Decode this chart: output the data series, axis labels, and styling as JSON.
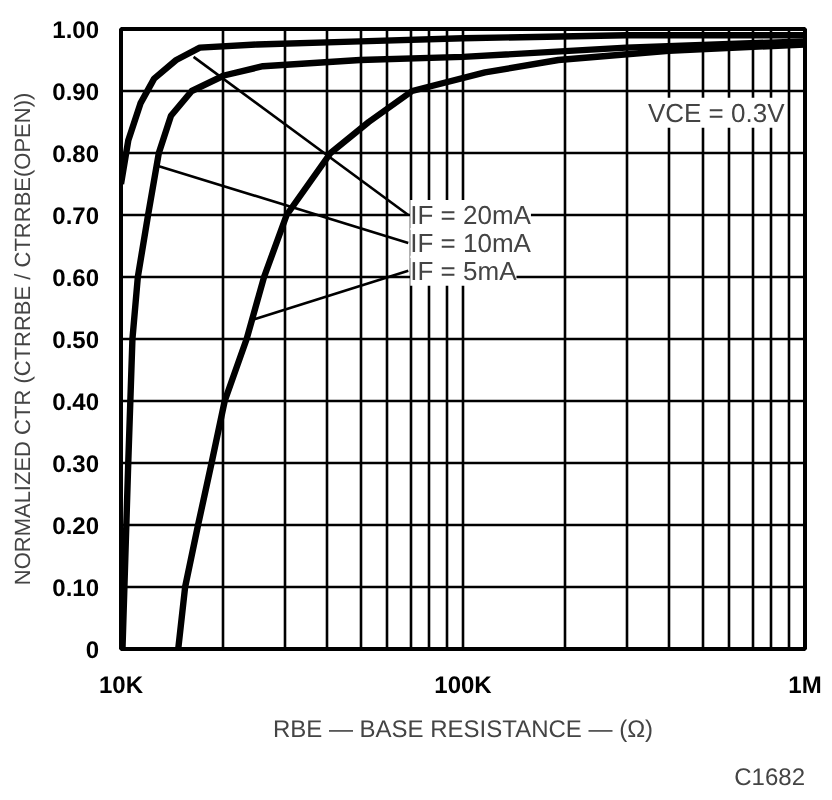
{
  "chart_data": {
    "type": "line",
    "xlabel": "RBE — BASE RESISTANCE — (Ω)",
    "ylabel": "NORMALIZED CTR (CTRRBE / CTRRBE(OPEN))",
    "log": "x",
    "grid": true,
    "marker": "none",
    "line_style": "solid",
    "xlim": [
      10000,
      1000000
    ],
    "ylim": [
      0,
      1
    ],
    "xticks": [
      {
        "value": 10000,
        "label": "10K"
      },
      {
        "value": 20000,
        "label": null
      },
      {
        "value": 30000,
        "label": null
      },
      {
        "value": 40000,
        "label": null
      },
      {
        "value": 50000,
        "label": null
      },
      {
        "value": 60000,
        "label": null
      },
      {
        "value": 70000,
        "label": null
      },
      {
        "value": 80000,
        "label": null
      },
      {
        "value": 90000,
        "label": null
      },
      {
        "value": 100000,
        "label": "100K"
      },
      {
        "value": 200000,
        "label": null
      },
      {
        "value": 300000,
        "label": null
      },
      {
        "value": 400000,
        "label": null
      },
      {
        "value": 500000,
        "label": null
      },
      {
        "value": 600000,
        "label": null
      },
      {
        "value": 700000,
        "label": null
      },
      {
        "value": 800000,
        "label": null
      },
      {
        "value": 900000,
        "label": null
      },
      {
        "value": 1000000,
        "label": "1M"
      }
    ],
    "yticks": [
      0,
      {
        "value": 0.1,
        "label": "0.10"
      },
      {
        "value": 0.2,
        "label": "0.20"
      },
      {
        "value": 0.3,
        "label": "0.30"
      },
      {
        "value": 0.4,
        "label": "0.40"
      },
      {
        "value": 0.5,
        "label": "0.50"
      },
      {
        "value": 0.6,
        "label": "0.60"
      },
      {
        "value": 0.7,
        "label": "0.70"
      },
      {
        "value": 0.8,
        "label": "0.80"
      },
      {
        "value": 0.9,
        "label": "0.90"
      },
      {
        "value": 1,
        "label": "1.00"
      }
    ],
    "series": [
      {
        "color": "#000000",
        "x": [
          10000,
          10500,
          11400,
          12500,
          14500,
          17000,
          25000,
          50000,
          100000,
          300000,
          1000000
        ],
        "values": [
          0.75,
          0.82,
          0.88,
          0.92,
          0.95,
          0.97,
          0.975,
          0.98,
          0.985,
          0.99,
          0.99
        ]
      },
      {
        "color": "#000000",
        "x": [
          10100,
          10500,
          10800,
          11200,
          12000,
          12900,
          14000,
          16100,
          20000,
          26000,
          50000,
          100000,
          300000,
          1000000
        ],
        "values": [
          0,
          0.3,
          0.5,
          0.6,
          0.7,
          0.8,
          0.86,
          0.9,
          0.925,
          0.94,
          0.95,
          0.955,
          0.97,
          0.98
        ]
      },
      {
        "color": "#000000",
        "x": [
          14700,
          15400,
          16800,
          18400,
          20100,
          23300,
          26200,
          30500,
          41000,
          53000,
          71000,
          116000,
          190000,
          400000,
          1000000
        ],
        "values": [
          0,
          0.1,
          0.2,
          0.3,
          0.4,
          0.5,
          0.6,
          0.7,
          0.8,
          0.85,
          0.9,
          0.93,
          0.95,
          0.965,
          0.975
        ]
      }
    ],
    "annotations": [
      "VCE = 0.3V",
      {
        "text": "IF = 20mA",
        "x": 16300,
        "y": 0.955
      },
      {
        "text": "IF = 10mA",
        "x": 12700,
        "y": 0.78
      },
      {
        "text": "IF = 5mA",
        "x": 24000,
        "y": 0.53
      },
      "C1682"
    ]
  }
}
